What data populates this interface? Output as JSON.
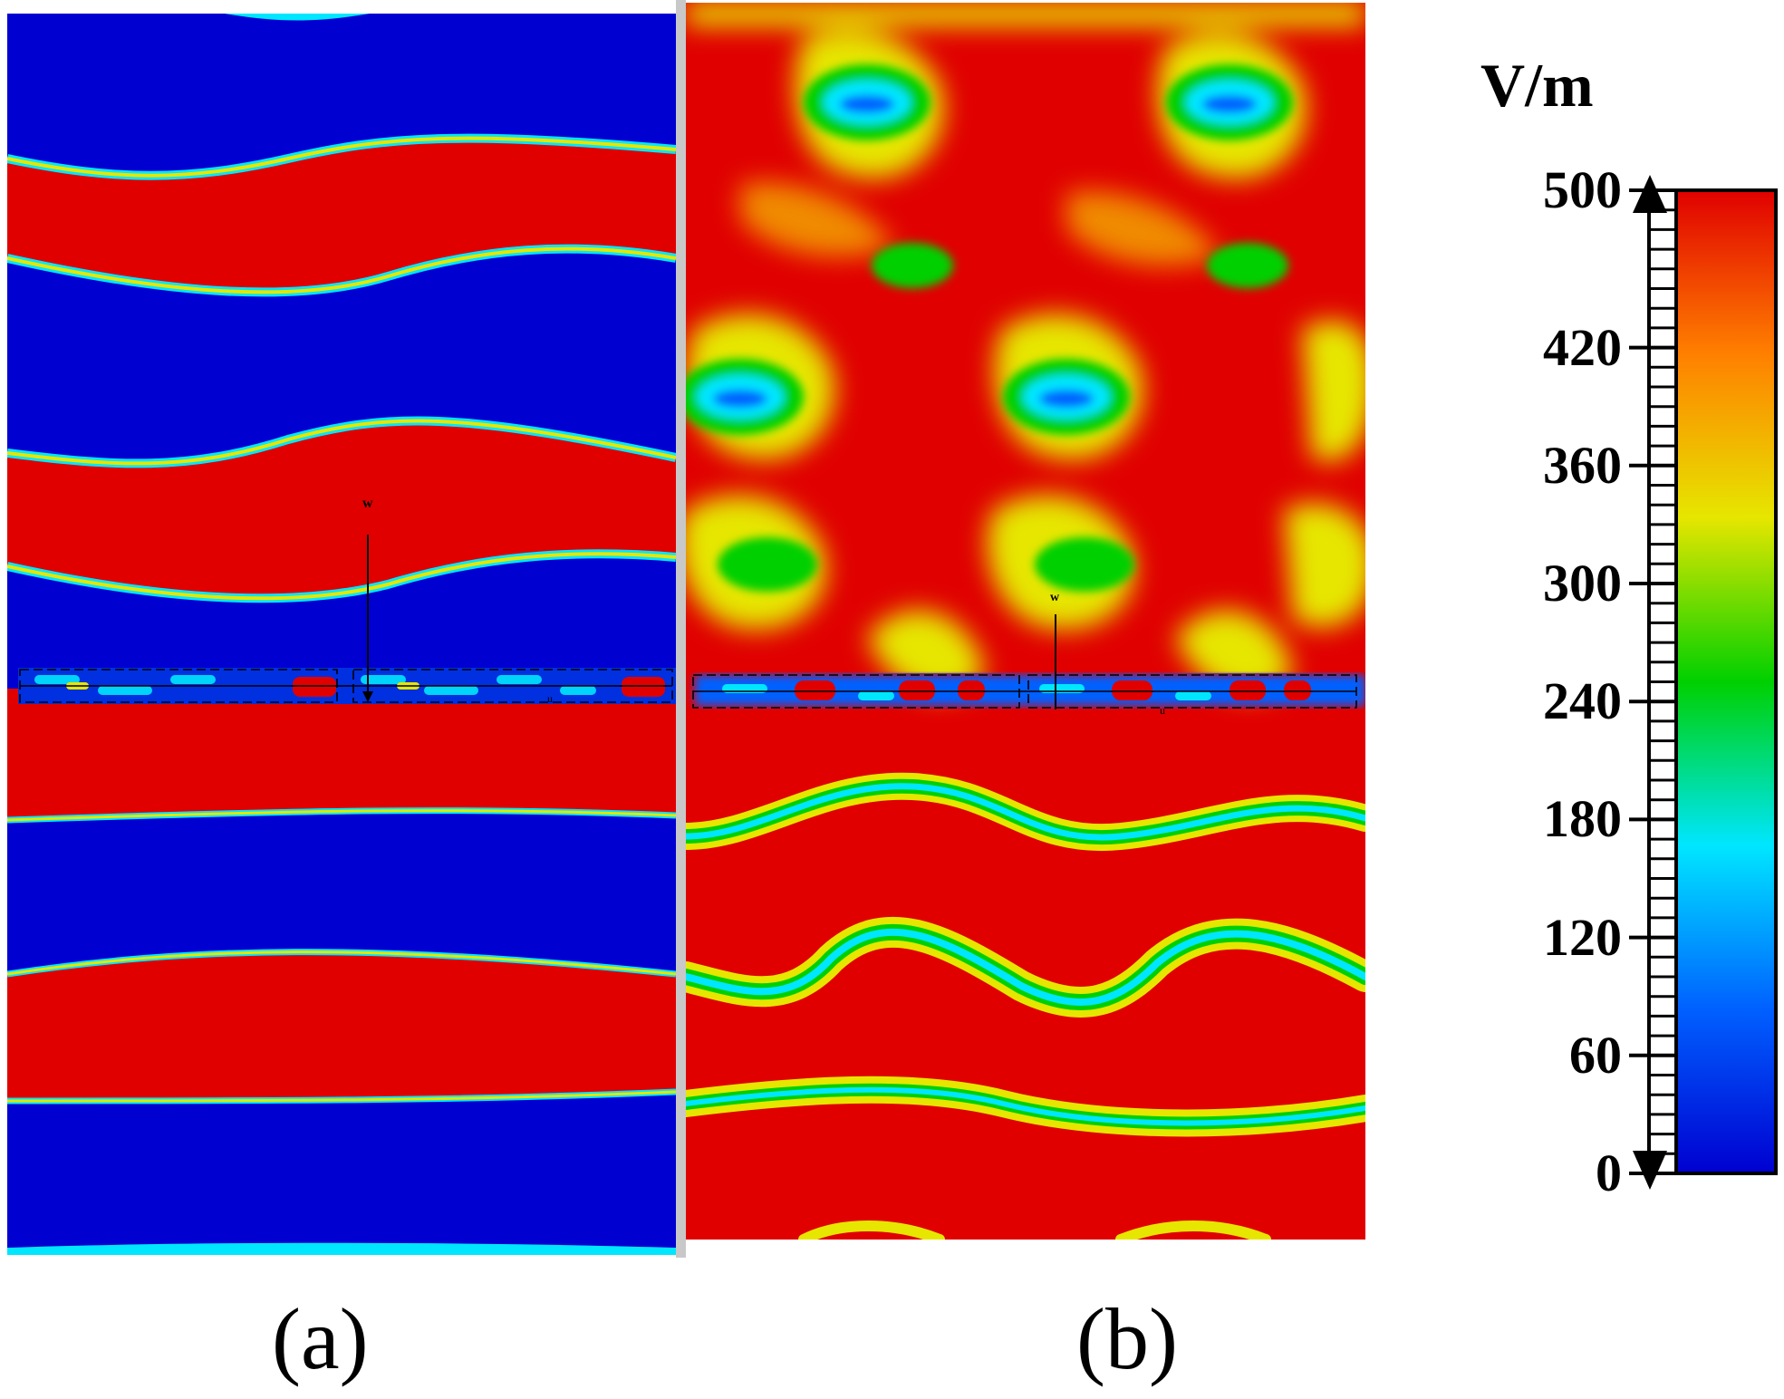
{
  "panels": [
    {
      "id": "a",
      "label": "(a)"
    },
    {
      "id": "b",
      "label": "(b)"
    }
  ],
  "markers": {
    "w_label": "w",
    "u_label": "u"
  },
  "colorbar": {
    "unit": "V/m",
    "min": 0,
    "max": 500,
    "ticks": [
      "500",
      "420",
      "360",
      "300",
      "240",
      "180",
      "120",
      "60",
      "0"
    ],
    "colors": [
      "#0000d0",
      "#0060ff",
      "#00e6ff",
      "#00d000",
      "#e6e600",
      "#ff8000",
      "#e00000"
    ]
  }
}
